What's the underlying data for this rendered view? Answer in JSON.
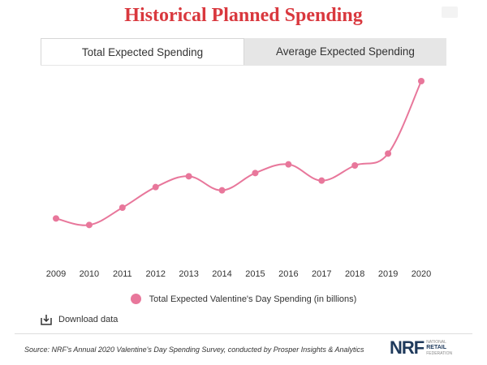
{
  "title": "Historical Planned Spending",
  "tabs": [
    {
      "label": "Total Expected Spending",
      "active": true
    },
    {
      "label": "Average Expected Spending",
      "active": false
    }
  ],
  "download_label": "Download data",
  "source_text": "Source: NRF's Annual 2020 Valentine's Day Spending Survey, conducted by Prosper Insights & Analytics",
  "logo": {
    "main": "NRF",
    "line1": "NATIONAL",
    "line2": "RETAIL",
    "line3": "FEDERATION"
  },
  "colors": {
    "title": "#d9383e",
    "series": "#e8779b",
    "tab_inactive": "#e6e6e6",
    "logo": "#1f3a5c"
  },
  "icons": {
    "download": "download-icon",
    "corner": "expand-icon"
  },
  "chart_data": {
    "type": "line",
    "title": "Historical Planned Spending",
    "categories": [
      "2009",
      "2010",
      "2011",
      "2012",
      "2013",
      "2014",
      "2015",
      "2016",
      "2017",
      "2018",
      "2019",
      "2020"
    ],
    "series": [
      {
        "name": "Total Expected Valentine's Day Spending (in billions)",
        "values": [
          14.7,
          14.1,
          15.7,
          17.6,
          18.6,
          17.3,
          18.9,
          19.7,
          18.2,
          19.6,
          20.7,
          27.4
        ]
      }
    ],
    "ylim": [
      10,
      28
    ],
    "grid": false,
    "legend": "bottom",
    "y_axis_shown": false
  }
}
